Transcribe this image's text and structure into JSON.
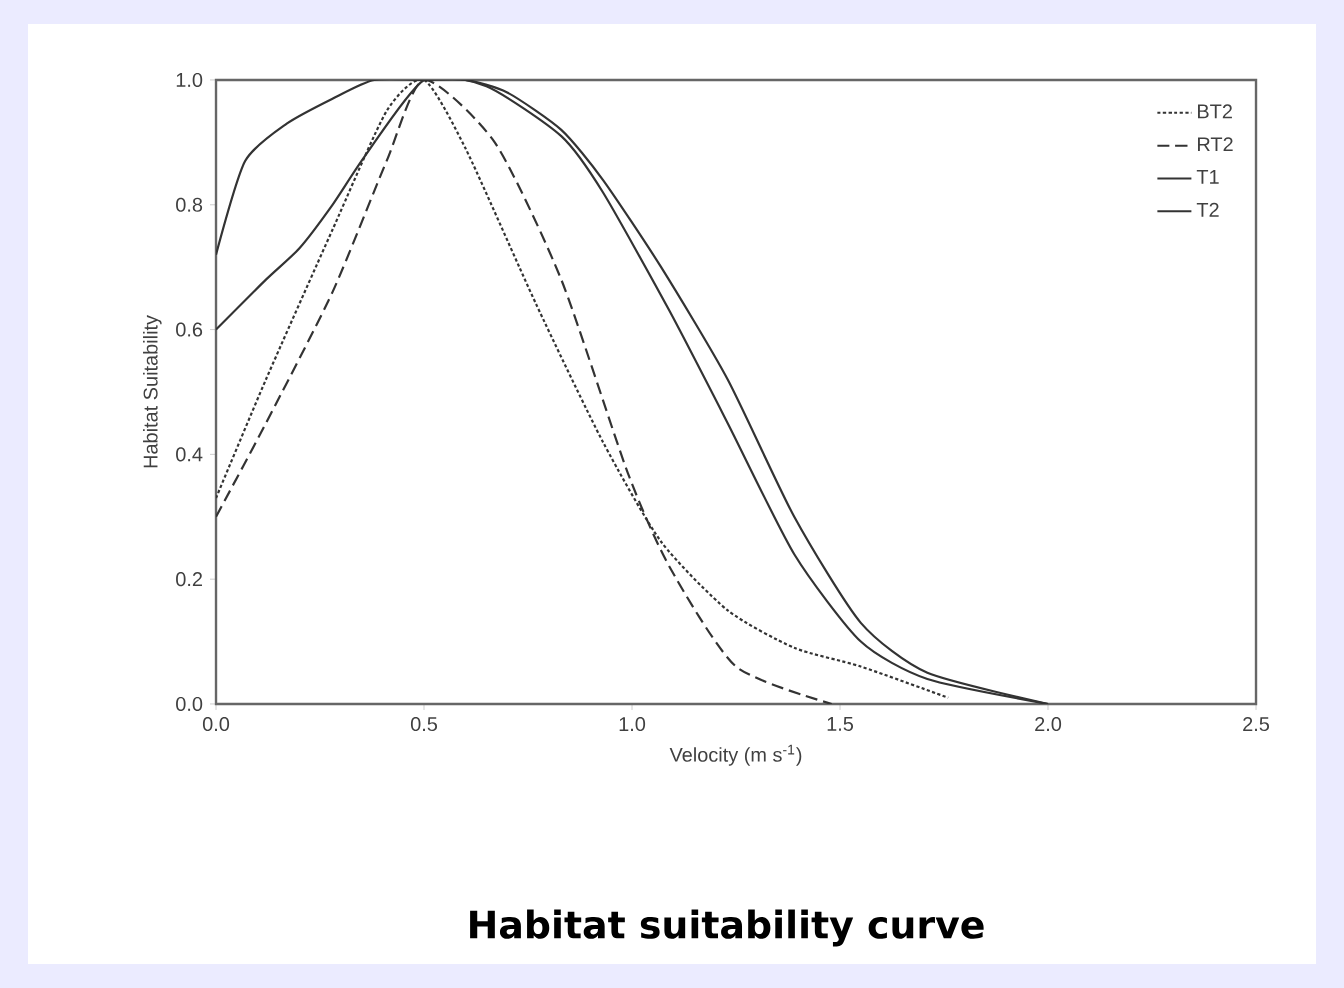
{
  "chart_data": {
    "type": "line",
    "title": "Habitat suitability curve",
    "xlabel": "Velocity (m s$^{-1}$)",
    "ylabel": "Habitat Suitability",
    "xlim": [
      0,
      2.5
    ],
    "ylim": [
      0,
      1.0
    ],
    "xticks": [
      {
        "value": 0,
        "label": "0.0"
      },
      {
        "value": 0.5,
        "label": "0.5"
      },
      {
        "value": 1.0,
        "label": "1.0"
      },
      {
        "value": 1.5,
        "label": "1.5"
      },
      {
        "value": 2.0,
        "label": "2.0"
      },
      {
        "value": 2.5,
        "label": "2.5"
      }
    ],
    "yticks": [
      {
        "value": 0,
        "label": "0.0"
      },
      {
        "value": 0.2,
        "label": "0.2"
      },
      {
        "value": 0.4,
        "label": "0.4"
      },
      {
        "value": 0.6,
        "label": "0.6"
      },
      {
        "value": 0.8,
        "label": "0.8"
      },
      {
        "value": 1.0,
        "label": "1.0"
      }
    ],
    "grid": false,
    "legend": "top right",
    "marker": "none",
    "series": [
      {
        "name": "BT2",
        "color": "#333333",
        "line_style": "dotted",
        "x": [
          0,
          0.12,
          0.28,
          0.41,
          0.5,
          0.6,
          0.77,
          0.93,
          1.07,
          1.23,
          1.39,
          1.55,
          1.76
        ],
        "values": [
          0.33,
          0.52,
          0.76,
          0.95,
          1.0,
          0.89,
          0.64,
          0.42,
          0.26,
          0.15,
          0.09,
          0.06,
          0.01
        ]
      },
      {
        "name": "RT2",
        "color": "#333333",
        "line_style": "dashed",
        "x": [
          0,
          0.12,
          0.28,
          0.41,
          0.5,
          0.67,
          0.83,
          0.99,
          1.09,
          1.25,
          1.48
        ],
        "values": [
          0.3,
          0.45,
          0.66,
          0.87,
          1.0,
          0.9,
          0.68,
          0.37,
          0.22,
          0.06,
          0.0
        ]
      },
      {
        "name": "T1",
        "color": "#333333",
        "line_style": "solid",
        "x": [
          0,
          0.07,
          0.17,
          0.28,
          0.38,
          0.5,
          0.6,
          0.7,
          0.83,
          0.93,
          1.07,
          1.23,
          1.39,
          1.55,
          1.71,
          2.0
        ],
        "values": [
          0.72,
          0.87,
          0.93,
          0.97,
          1.0,
          1.0,
          1.0,
          0.98,
          0.92,
          0.84,
          0.7,
          0.52,
          0.3,
          0.13,
          0.05,
          0.0
        ]
      },
      {
        "name": "T2",
        "color": "#333333",
        "line_style": "solid",
        "x": [
          0,
          0.12,
          0.2,
          0.28,
          0.36,
          0.5,
          0.65,
          0.83,
          0.93,
          1.09,
          1.23,
          1.39,
          1.55,
          1.71,
          2.0
        ],
        "values": [
          0.6,
          0.68,
          0.73,
          0.8,
          0.88,
          1.0,
          0.99,
          0.91,
          0.82,
          0.63,
          0.45,
          0.24,
          0.1,
          0.04,
          0.0
        ]
      }
    ]
  }
}
